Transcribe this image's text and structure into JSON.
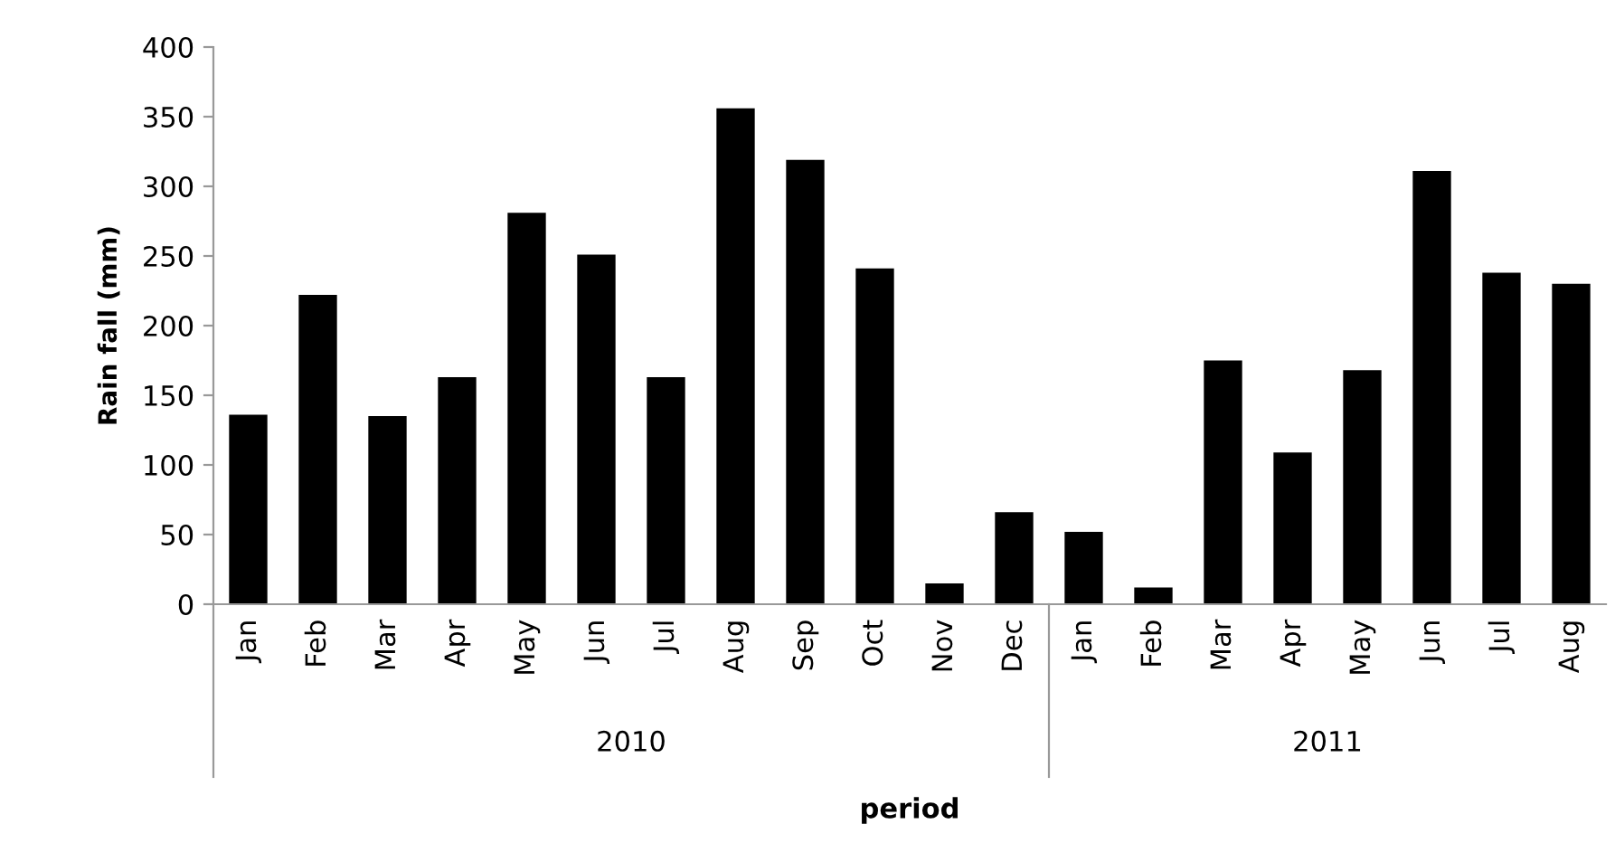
{
  "chart_data": {
    "type": "bar",
    "xlabel": "period",
    "ylabel": "Rain fall (mm)",
    "categories": [
      "Jan",
      "Feb",
      "Mar",
      "Apr",
      "May",
      "Jun",
      "Jul",
      "Aug",
      "Sep",
      "Oct",
      "Nov",
      "Dec",
      "Jan",
      "Feb",
      "Mar",
      "Apr",
      "May",
      "Jun",
      "Jul",
      "Aug"
    ],
    "values": [
      136,
      222,
      135,
      163,
      281,
      251,
      163,
      356,
      319,
      241,
      15,
      66,
      52,
      12,
      175,
      109,
      168,
      311,
      238,
      230
    ],
    "color": "#000000",
    "ylim": [
      0,
      400
    ],
    "yticks": [
      0,
      50,
      100,
      150,
      200,
      250,
      300,
      350,
      400
    ],
    "grid": false,
    "annotations": [
      "2010",
      "2011"
    ]
  }
}
